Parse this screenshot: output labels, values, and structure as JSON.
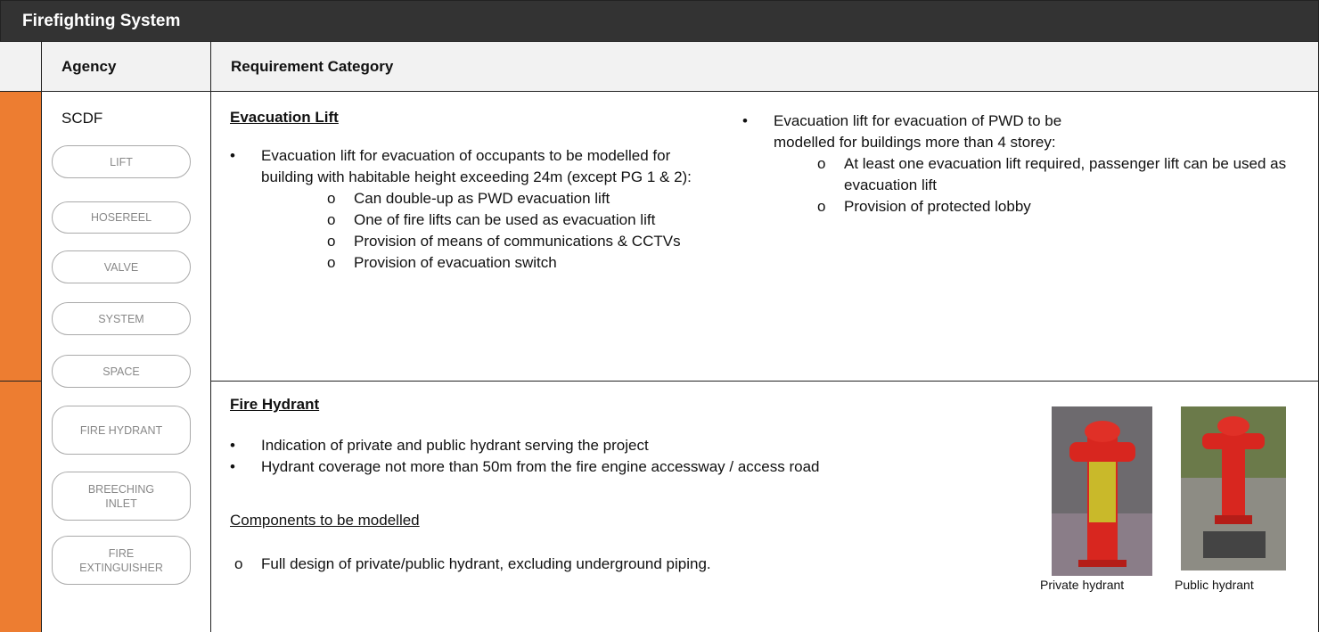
{
  "header": {
    "title": "Firefighting System"
  },
  "table": {
    "columns": [
      "Agency",
      "Requirement Category"
    ],
    "agency": "SCDF",
    "tags": [
      "LIFT",
      "HOSEREEL",
      "VALVE",
      "SYSTEM",
      "SPACE",
      "FIRE HYDRANT",
      "BREECHING INLET",
      "FIRE EXTINGUISHER"
    ],
    "rows": [
      {
        "heading": "Evacuation Lift",
        "left": {
          "text": "Evacuation lift for evacuation of occupants to be modelled for building with habitable height exceeding 24m (except PG 1 & 2):",
          "sub": [
            "Can double-up as PWD evacuation lift",
            "One of fire lifts can be used as evacuation lift",
            "Provision of means of communications & CCTVs",
            "Provision of evacuation switch"
          ]
        },
        "right": {
          "text": "Evacuation lift for evacuation of PWD to be modelled for buildings more than 4 storey:",
          "sub": [
            "At least one evacuation lift required, passenger lift can be used as evacuation lift",
            "Provision of protected lobby"
          ]
        }
      },
      {
        "heading": "Fire Hydrant",
        "bullets": [
          "Indication of private and public hydrant serving the project",
          "Hydrant coverage not more than 50m from the fire engine accessway / access road"
        ],
        "components_heading": "Components to be modelled",
        "components": [
          "Full design of private/public hydrant, excluding underground piping."
        ],
        "images": [
          {
            "caption": "Private hydrant"
          },
          {
            "caption": "Public hydrant"
          }
        ]
      }
    ]
  }
}
